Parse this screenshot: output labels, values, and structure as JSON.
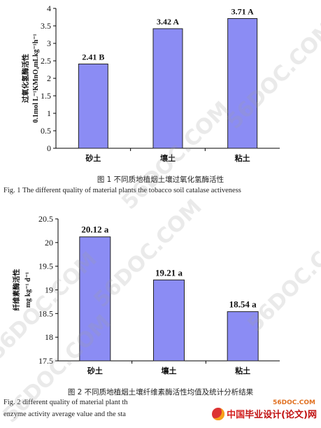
{
  "chart_data": [
    {
      "type": "bar",
      "categories": [
        "砂土",
        "壤土",
        "粘土"
      ],
      "values": [
        2.41,
        3.42,
        3.71
      ],
      "data_labels": [
        "2.41 B",
        "3.42 A",
        "3.71 A"
      ],
      "ylabel_line1": "过氧化氢酶活性",
      "ylabel_line2": "0.1mol L⁻¹KMnO₄mLkg⁻¹h⁻¹",
      "ylim": [
        0,
        4
      ],
      "yticks": [
        "0",
        "0.5",
        "1",
        "1.5",
        "2",
        "2.5",
        "3",
        "3.5",
        "4"
      ],
      "bar_color": "#8b8cf4",
      "caption_cn": "图 1  不同质地植烟土壤过氧化氢酶活性",
      "caption_en": "Fig. 1    The different quality of material plants the tobacco soil catalase activeness"
    },
    {
      "type": "bar",
      "categories": [
        "砂土",
        "壤土",
        "粘土"
      ],
      "values": [
        20.12,
        19.21,
        18.54
      ],
      "data_labels": [
        "20.12 a",
        "19.21 a",
        "18.54 a"
      ],
      "ylabel_line1": "纤维素酶活性",
      "ylabel_line2": "mg kg⁻¹ d⁻¹",
      "ylim": [
        17.5,
        20.5
      ],
      "yticks": [
        "17.5",
        "18",
        "18.5",
        "19",
        "19.5",
        "20",
        "20.5"
      ],
      "bar_color": "#8b8cf4",
      "caption_cn": "图 2  不同质地植烟土壤纤维素酶活性均值及统计分析结果",
      "caption_en_line1": "Fig. 2 different quality of material plant th",
      "caption_en_line2": "enzyme activity average value and the sta"
    }
  ],
  "watermarks": [
    "56DOC.COM",
    "56DOC.COM",
    "56DOC.COM",
    "56DOC.COM",
    "56DOC.COM",
    "56DOC.COM"
  ],
  "logo": {
    "site": "56DOC.COM",
    "brand_cn": "中国",
    "brand_main": "毕业设计(论文)网"
  }
}
